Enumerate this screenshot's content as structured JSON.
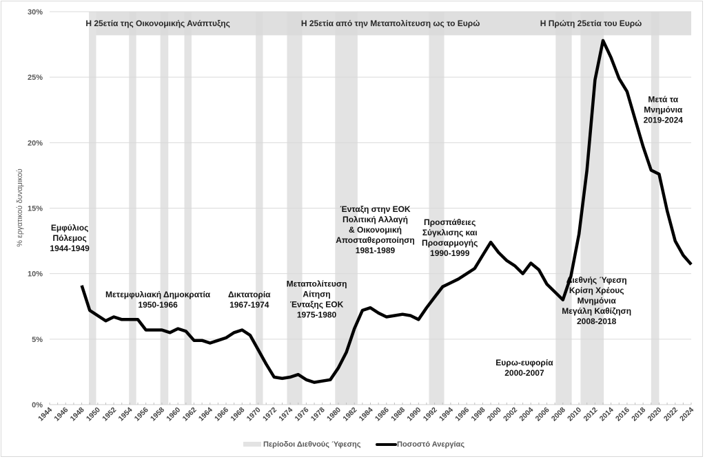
{
  "chart_data": {
    "type": "line",
    "title": "",
    "xlabel": "",
    "ylabel": "% εργατικού δυναμικού",
    "ylim": [
      0,
      30
    ],
    "xlim": [
      1944,
      2024
    ],
    "y_ticks": [
      "0%",
      "5%",
      "10%",
      "15%",
      "20%",
      "25%",
      "30%"
    ],
    "y_tick_values": [
      0,
      5,
      10,
      15,
      20,
      25,
      30
    ],
    "x_ticks": [
      "1944",
      "1946",
      "1948",
      "1950",
      "1952",
      "1954",
      "1956",
      "1958",
      "1960",
      "1962",
      "1964",
      "1966",
      "1968",
      "1970",
      "1972",
      "1974",
      "1976",
      "1978",
      "1980",
      "1982",
      "1984",
      "1986",
      "1988",
      "1990",
      "1992",
      "1994",
      "1996",
      "1998",
      "2000",
      "2002",
      "2004",
      "2006",
      "2008",
      "2010",
      "2012",
      "2014",
      "2016",
      "2018",
      "2020",
      "2022",
      "2024"
    ],
    "x_tick_values": [
      1944,
      1946,
      1948,
      1950,
      1952,
      1954,
      1956,
      1958,
      1960,
      1962,
      1964,
      1966,
      1968,
      1970,
      1972,
      1974,
      1976,
      1978,
      1980,
      1982,
      1984,
      1986,
      1988,
      1990,
      1992,
      1994,
      1996,
      1998,
      2000,
      2002,
      2004,
      2006,
      2008,
      2010,
      2012,
      2014,
      2016,
      2018,
      2020,
      2022,
      2024
    ],
    "grid": true,
    "legend_position": "bottom",
    "series": [
      {
        "name": "Ποσοστό Ανεργίας",
        "color": "#000000",
        "x": [
          1948,
          1949,
          1950,
          1951,
          1952,
          1953,
          1954,
          1955,
          1956,
          1957,
          1958,
          1959,
          1960,
          1961,
          1962,
          1963,
          1964,
          1965,
          1966,
          1967,
          1968,
          1969,
          1970,
          1971,
          1972,
          1973,
          1974,
          1975,
          1976,
          1977,
          1978,
          1979,
          1980,
          1981,
          1982,
          1983,
          1984,
          1985,
          1986,
          1987,
          1988,
          1989,
          1990,
          1991,
          1992,
          1993,
          1994,
          1995,
          1996,
          1997,
          1998,
          1999,
          2000,
          2001,
          2002,
          2003,
          2004,
          2005,
          2006,
          2007,
          2008,
          2009,
          2010,
          2011,
          2012,
          2013,
          2014,
          2015,
          2016,
          2017,
          2018,
          2019,
          2020,
          2021,
          2022,
          2023,
          2024
        ],
        "values": [
          9.1,
          7.2,
          6.8,
          6.4,
          6.7,
          6.5,
          6.5,
          6.5,
          5.7,
          5.7,
          5.7,
          5.5,
          5.8,
          5.6,
          4.9,
          4.9,
          4.7,
          4.9,
          5.1,
          5.5,
          5.7,
          5.3,
          4.2,
          3.1,
          2.1,
          2.0,
          2.1,
          2.3,
          1.9,
          1.7,
          1.8,
          1.9,
          2.8,
          4.0,
          5.8,
          7.2,
          7.4,
          7.0,
          6.7,
          6.8,
          6.9,
          6.8,
          6.5,
          7.4,
          8.2,
          9.0,
          9.3,
          9.6,
          10.0,
          10.4,
          11.4,
          12.4,
          11.6,
          11.0,
          10.6,
          10.0,
          10.8,
          10.3,
          9.2,
          8.6,
          8.0,
          9.8,
          13.0,
          17.9,
          24.8,
          27.8,
          26.5,
          24.9,
          23.9,
          21.8,
          19.7,
          17.9,
          17.6,
          14.8,
          12.5,
          11.4,
          10.7
        ]
      }
    ],
    "recession_bands": {
      "name": "Περίοδοι Διεθνούς Ύφεσης",
      "color": "#e3e3e3",
      "ranges": [
        [
          1948.9,
          1949.8
        ],
        [
          1953.9,
          1954.8
        ],
        [
          1957.8,
          1958.8
        ],
        [
          1960.8,
          1961.7
        ],
        [
          1969.7,
          1970.6
        ],
        [
          1973.6,
          1975.5
        ],
        [
          1979.6,
          1982.4
        ],
        [
          1991.3,
          1993.2
        ],
        [
          2007.1,
          2009.1
        ],
        [
          2010.2,
          2013.1
        ],
        [
          2019.0,
          2020.0
        ]
      ]
    },
    "era_band": {
      "color": "#d9d9d9",
      "range": [
        1949.8,
        2024
      ],
      "y_range": [
        28.2,
        30
      ],
      "labels": [
        {
          "text": "Η 25ετία της Οικονομικής Ανάπτυξης",
          "x": 1957.5
        },
        {
          "text": "Η 25ετία από την Μεταπολίτευση ως το Ευρώ",
          "x": 1986.5
        },
        {
          "text": "Η Πρώτη 25ετία του Ευρώ",
          "x": 2011.5
        }
      ]
    },
    "annotations": [
      {
        "lines": [
          "Εμφύλιος",
          "Πόλεμος",
          "1944-1949"
        ],
        "x": 1946.5,
        "y": 13.3
      },
      {
        "lines": [
          "Μετεμφυλιακή Δημοκρατία",
          "1950-1966"
        ],
        "x": 1957.5,
        "y": 8.2
      },
      {
        "lines": [
          "Δικτατορία",
          "1967-1974"
        ],
        "x": 1968.9,
        "y": 8.2
      },
      {
        "lines": [
          "Μεταπολίτευση",
          "Αίτηση",
          "Ένταξης ΕΟΚ",
          "1975-1980"
        ],
        "x": 1977.3,
        "y": 9.0
      },
      {
        "lines": [
          "Ένταξη στην ΕΟΚ",
          "Πολιτική Αλλαγή",
          "& Οικονομική",
          "Αποσταθεροποίηση",
          "1981-1989"
        ],
        "x": 1984.6,
        "y": 14.7
      },
      {
        "lines": [
          "Προσπάθειες",
          "Σύγκλισης και",
          "Προσαρμογής",
          "1990-1999"
        ],
        "x": 1993.9,
        "y": 13.7
      },
      {
        "lines": [
          "Ευρω-ευφορία",
          "2000-2007"
        ],
        "x": 2003.2,
        "y": 3.0
      },
      {
        "lines": [
          "Διεθνής Ύφεση",
          "Κρίση Χρέους",
          "Μνημόνια",
          "Μεγάλη Καθίζηση",
          "2008-2018"
        ],
        "x": 2012.2,
        "y": 9.3
      },
      {
        "lines": [
          "Μετά τα",
          "Μνημόνια",
          "2019-2024"
        ],
        "x": 2020.5,
        "y": 23.1
      }
    ],
    "legend": [
      {
        "label": "Περίοδοι Διεθνούς Ύφεσης",
        "kind": "band",
        "color": "#e3e3e3"
      },
      {
        "label": "Ποσοστό Ανεργίας",
        "kind": "line",
        "color": "#000000"
      }
    ]
  }
}
